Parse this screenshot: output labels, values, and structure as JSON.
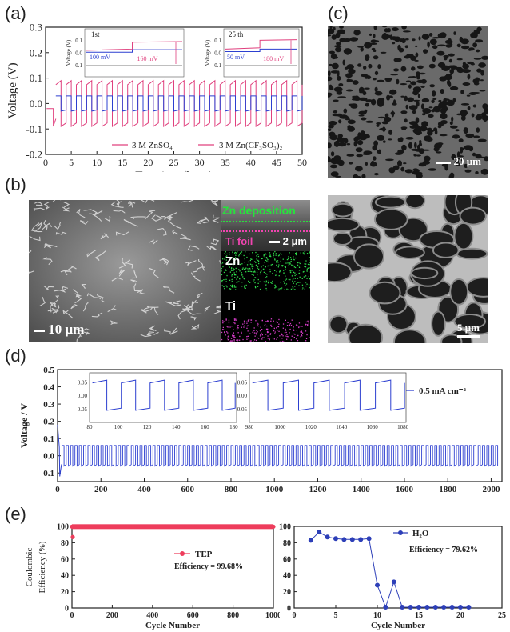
{
  "labels": {
    "a": "(a)",
    "b": "(b)",
    "c": "(c)",
    "d": "(d)",
    "e": "(e)"
  },
  "colors": {
    "pink": "#e0407e",
    "blue": "#2c3fd0",
    "red": "#ee3d5c",
    "navy": "#2d3fb8",
    "ink": "#222222"
  },
  "panel_b": {
    "scale_main": "10 μm",
    "tag_zn_dep": "Zn deposition",
    "tag_ti_foil": "Ti foil",
    "scale_inset": "2 μm",
    "map_zn": "Zn",
    "map_ti": "Ti"
  },
  "panel_c": {
    "scale_top": "20 μm",
    "scale_bottom": "5 μm"
  },
  "chart_data": [
    {
      "id": "a",
      "type": "line",
      "xlabel": "Test time (hour)",
      "ylabel": "Voltage (V)",
      "xlim": [
        0,
        50
      ],
      "ylim": [
        -0.2,
        0.3
      ],
      "xticks": [
        0,
        5,
        10,
        15,
        20,
        25,
        30,
        35,
        40,
        45,
        50
      ],
      "yticks": [
        -0.2,
        -0.1,
        0.0,
        0.1,
        0.2,
        0.3
      ],
      "series": [
        {
          "name": "3 M ZnSO₄",
          "color": "#e0407e",
          "period_h": 2.0,
          "high": 0.09,
          "low": -0.09
        },
        {
          "name": "3 M Zn(CF₃SO₃)₂",
          "color": "#2c3fd0",
          "period_h": 2.0,
          "high": 0.03,
          "low": -0.03
        }
      ],
      "insets": [
        {
          "label": "1st",
          "ylabel": "Voltage (V)",
          "yticks": [
            0.1,
            0.0,
            -0.1
          ],
          "ann_blue": "100 mV",
          "ann_pink": "160 mV"
        },
        {
          "label": "25 th",
          "ylabel": "Voltage (V)",
          "yticks": [
            0.1,
            0.0,
            -0.1
          ],
          "ann_blue": "50 mV",
          "ann_pink": "180 mV"
        }
      ]
    },
    {
      "id": "d",
      "type": "line",
      "xlabel": "Test Time / h",
      "ylabel": "Voltage / V",
      "xlim": [
        0,
        2050
      ],
      "ylim": [
        -0.15,
        0.5
      ],
      "xticks": [
        0,
        200,
        400,
        600,
        800,
        1000,
        1200,
        1400,
        1600,
        1800,
        2000
      ],
      "yticks": [
        -0.1,
        0.0,
        0.1,
        0.2,
        0.3,
        0.4,
        0.5
      ],
      "series": [
        {
          "name": "0.5 mA cm⁻²",
          "color": "#2c3fd0",
          "period_h": 20,
          "high": 0.06,
          "low": -0.06
        }
      ],
      "insets": [
        {
          "xticks": [
            80,
            100,
            120,
            140,
            160,
            180
          ],
          "yticks": [
            0.05,
            0.0,
            -0.05
          ],
          "xlim": [
            80,
            182
          ]
        },
        {
          "xticks": [
            980,
            1000,
            1020,
            1040,
            1060,
            1080
          ],
          "yticks": [
            0.05,
            0.0,
            -0.05
          ],
          "xlim": [
            980,
            1082
          ]
        }
      ]
    },
    {
      "id": "e-left",
      "type": "scatter",
      "xlabel": "Cycle Number",
      "ylabel": "Coulombic Efficiency (%)",
      "xlim": [
        0,
        1000
      ],
      "ylim": [
        0,
        100
      ],
      "xticks": [
        0,
        200,
        400,
        600,
        800,
        1000
      ],
      "yticks": [
        0,
        20,
        40,
        60,
        80,
        100
      ],
      "series": [
        {
          "name": "TEP",
          "color": "#ee3d5c",
          "value": 99.68
        }
      ],
      "annotation": "Efficiency = 99.68%"
    },
    {
      "id": "e-right",
      "type": "line",
      "xlabel": "Cycle Number",
      "ylabel": "",
      "xlim": [
        0,
        25
      ],
      "ylim": [
        0,
        100
      ],
      "xticks": [
        0,
        5,
        10,
        15,
        20,
        25
      ],
      "yticks": [
        0,
        20,
        40,
        60,
        80,
        100
      ],
      "series": [
        {
          "name": "H₂O",
          "color": "#2d3fb8",
          "x": [
            2,
            3,
            4,
            5,
            6,
            7,
            8,
            9,
            10,
            11,
            12,
            13,
            14,
            15,
            16,
            17,
            18,
            19,
            20,
            21
          ],
          "y": [
            83,
            93,
            87,
            85,
            84,
            84,
            84,
            85,
            28,
            1,
            32,
            1,
            1,
            1,
            1,
            1,
            1,
            1,
            1,
            1
          ]
        }
      ],
      "annotation": "Efficiency = 79.62%"
    }
  ]
}
